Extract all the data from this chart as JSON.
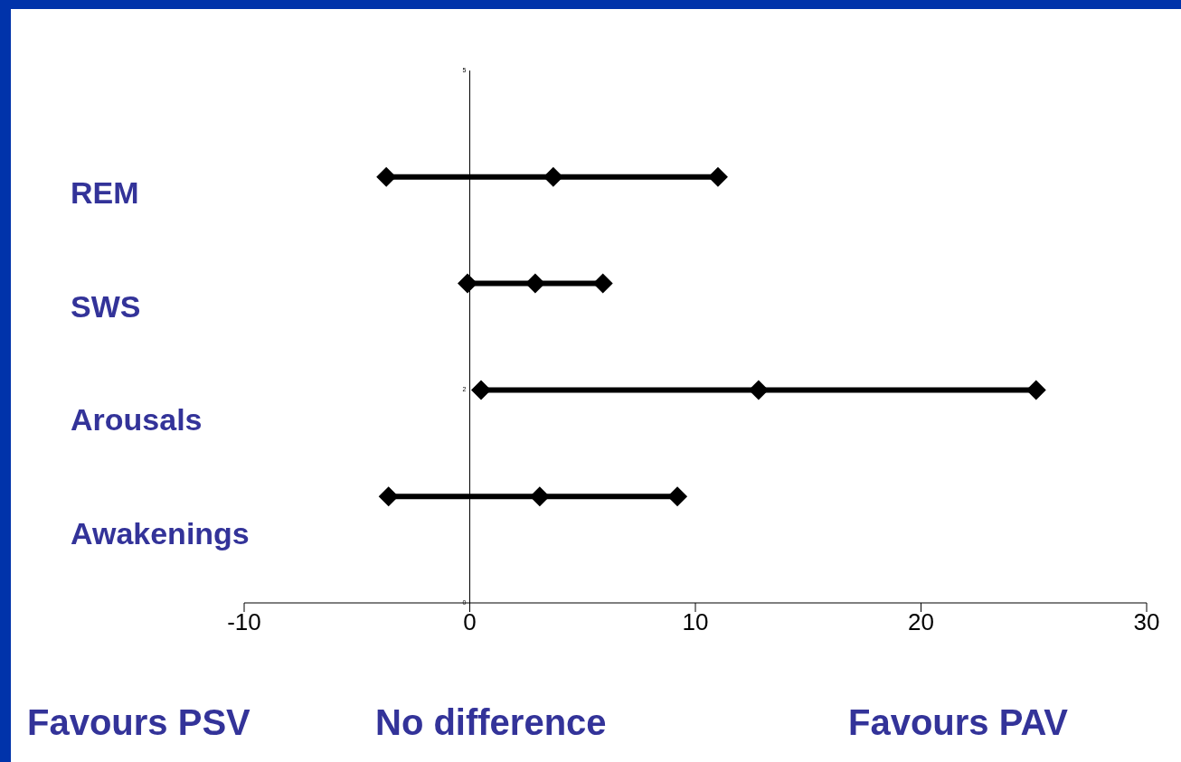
{
  "chart_data": {
    "type": "line",
    "series": [
      {
        "color": "#000000",
        "x": [
          -3.7,
          3.7,
          11.0
        ],
        "values": [
          4,
          4,
          4
        ]
      },
      {
        "color": "#000000",
        "x": [
          -0.1,
          2.9,
          5.9
        ],
        "values": [
          3,
          3,
          3
        ]
      },
      {
        "color": "#000000",
        "x": [
          0.5,
          12.8,
          25.1
        ],
        "values": [
          2,
          2,
          2
        ]
      },
      {
        "color": "#000000",
        "x": [
          -3.6,
          3.1,
          9.2
        ],
        "values": [
          1,
          1,
          1
        ]
      }
    ],
    "xlim": [
      -10,
      30
    ],
    "xticks": [
      -10,
      0,
      10,
      20,
      30
    ],
    "ylim": [
      0,
      5
    ],
    "yticks": [
      0,
      2,
      5
    ],
    "marker": "diamond",
    "line_style": "solid",
    "grid": false,
    "annotations": [
      "REM",
      "SWS",
      "Arousals",
      "Awakenings",
      "Favours PSV",
      "No difference",
      "Favours PAV"
    ]
  }
}
